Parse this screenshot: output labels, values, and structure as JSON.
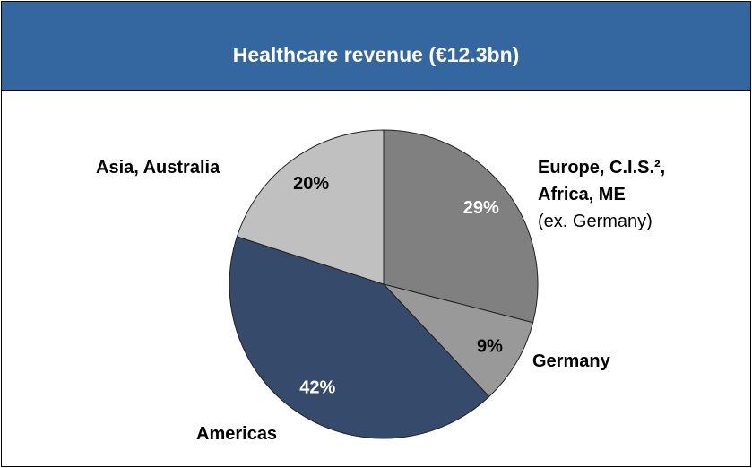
{
  "chart_data": {
    "type": "pie",
    "title": "Healthcare revenue (€12.3bn)",
    "categories": [
      "Europe, C.I.S.², Africa, ME",
      "Germany",
      "Americas",
      "Asia, Australia"
    ],
    "values": [
      29,
      9,
      42,
      20
    ],
    "value_labels": [
      "29%",
      "9%",
      "42%",
      "20%"
    ],
    "colors": [
      "#808080",
      "#999999",
      "#364a6b",
      "#c0c0c0"
    ],
    "value_label_colors": [
      "#ffffff",
      "#000000",
      "#ffffff",
      "#000000"
    ],
    "annotations": [
      "(ex. Germany)"
    ]
  }
}
